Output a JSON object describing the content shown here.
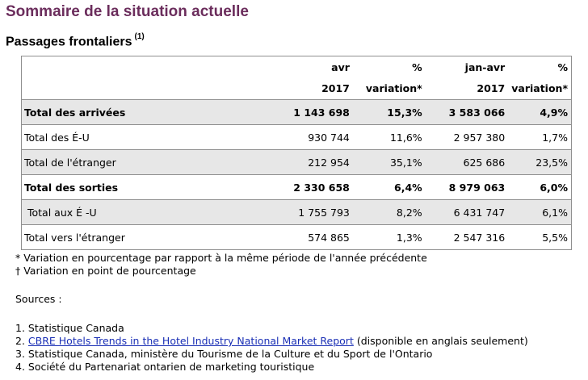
{
  "title": "Sommaire de la situation actuelle",
  "section": {
    "label": "Passages frontaliers",
    "note_ref": "(1)"
  },
  "table": {
    "header_row1": [
      "",
      "avr",
      "%",
      "jan-avr",
      "%"
    ],
    "header_row2": [
      "",
      "2017",
      "variation*",
      "2017",
      "variation*"
    ],
    "rows": [
      [
        "Total des arrivées",
        "1 143 698",
        "15,3%",
        "3 583 066",
        "4,9%"
      ],
      [
        "Total des É-U",
        "930 744",
        "11,6%",
        "2 957 380",
        "1,7%"
      ],
      [
        "Total de l'étranger",
        "212 954",
        "35,1%",
        "625 686",
        "23,5%"
      ],
      [
        "Total des sorties",
        "2 330 658",
        "6,4%",
        "8 979 063",
        "6,0%"
      ],
      [
        "Total aux É -U",
        "1 755 793",
        "8,2%",
        "6 431 747",
        "6,1%"
      ],
      [
        "Total vers l'étranger",
        "574 865",
        "1,3%",
        "2 547 316",
        "5,5%"
      ]
    ]
  },
  "notes": [
    "* Variation en pourcentage par rapport à la même période de l'année précédente",
    "† Variation en point de pourcentage"
  ],
  "sources": {
    "label": "Sources :",
    "items": [
      {
        "num": "1.",
        "text": "Statistique Canada"
      },
      {
        "num": "2.",
        "link": "CBRE Hotels Trends in the Hotel Industry National Market Report",
        "text": " (disponible en anglais seulement)"
      },
      {
        "num": "3.",
        "text": "Statistique Canada, ministère du Tourisme de la Culture et du Sport de l'Ontario"
      },
      {
        "num": "4.",
        "text": "Société du Partenariat ontarien de marketing touristique"
      }
    ]
  }
}
